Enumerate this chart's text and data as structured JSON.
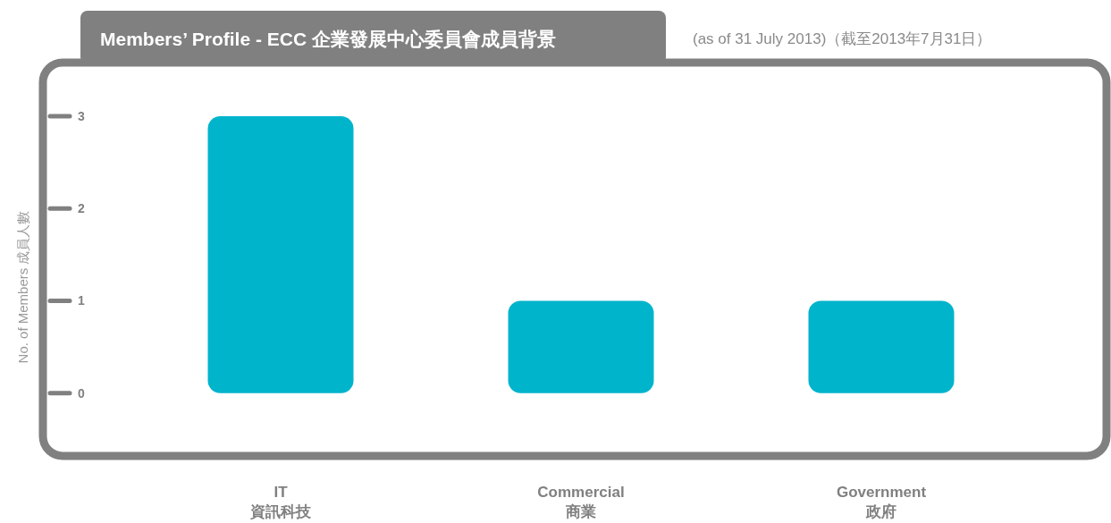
{
  "chart_data": {
    "type": "bar",
    "title": "Members’ Profile - ECC 企業發展中心委員會成員背景",
    "subtitle": "(as of 31 July 2013)（截至2013年7月31日）",
    "ylabel": "No. of Members 成員人數",
    "categories": [
      "IT\n資訊科技",
      "Commercial\n商業",
      "Government\n政府"
    ],
    "values": [
      3,
      1,
      1
    ],
    "color": "#00b4cc",
    "ylim": [
      -0.68,
      3.58
    ],
    "yticks": [
      0,
      1,
      2,
      3
    ]
  }
}
